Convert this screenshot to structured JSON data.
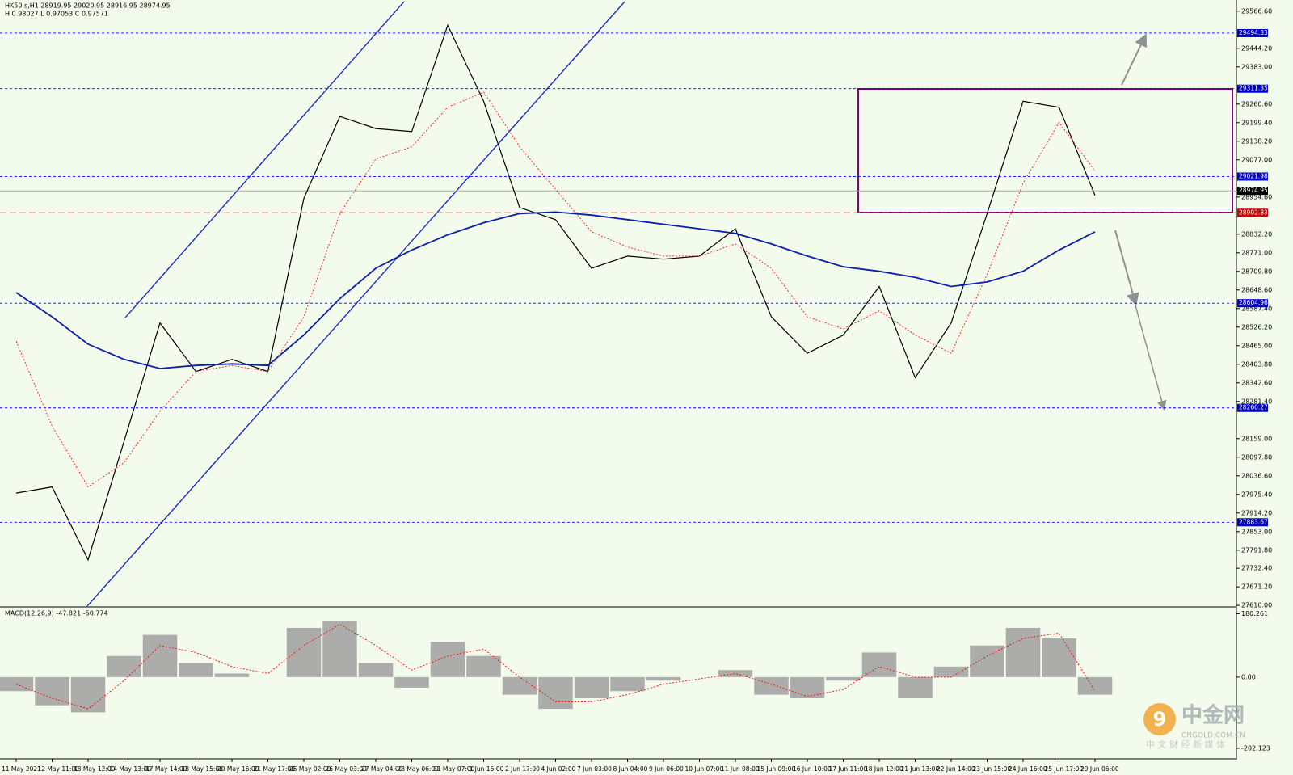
{
  "chart_data": [
    {
      "type": "line",
      "title": "HK50.s,H1  28919.95 29020.95 28916.95 28974.95",
      "subtitle": "H 0.98027 L 0.97053 C 0.97571",
      "categories": [
        "11 May 2021",
        "12 May 11:00",
        "13 May 12:00",
        "14 May 13:00",
        "17 May 14:00",
        "18 May 15:00",
        "20 May 16:00",
        "21 May 17:00",
        "25 May 02:00",
        "26 May 03:00",
        "27 May 04:00",
        "28 May 06:00",
        "31 May 07:00",
        "1 Jun 16:00",
        "2 Jun 17:00",
        "4 Jun 02:00",
        "7 Jun 03:00",
        "8 Jun 04:00",
        "9 Jun 06:00",
        "10 Jun 07:00",
        "11 Jun 08:00",
        "15 Jun 09:00",
        "16 Jun 10:00",
        "17 Jun 11:00",
        "18 Jun 12:00",
        "21 Jun 13:00",
        "22 Jun 14:00",
        "23 Jun 15:00",
        "24 Jun 16:00",
        "25 Jun 17:00",
        "29 Jun 06:00"
      ],
      "series": [
        {
          "color": "#000000",
          "width": 1.2,
          "dash": "none",
          "values": [
            27980,
            28000,
            27760,
            28150,
            28540,
            28380,
            28420,
            28380,
            28950,
            29220,
            29180,
            29170,
            29520,
            29270,
            28920,
            28880,
            28720,
            28760,
            28750,
            28760,
            28850,
            28560,
            28440,
            28500,
            28660,
            28360,
            28540,
            28900,
            29270,
            29250,
            28960
          ]
        },
        {
          "color": "#ff0000",
          "width": 0.8,
          "dash": "2,2",
          "values": [
            28480,
            28200,
            28000,
            28080,
            28250,
            28380,
            28400,
            28380,
            28560,
            28900,
            29080,
            29120,
            29250,
            29300,
            29120,
            28980,
            28840,
            28790,
            28760,
            28760,
            28800,
            28720,
            28560,
            28520,
            28580,
            28500,
            28440,
            28700,
            29000,
            29200,
            29040
          ]
        },
        {
          "color": "#0a1fa8",
          "width": 1.8,
          "dash": "none",
          "values": [
            28640,
            28560,
            28470,
            28420,
            28390,
            28400,
            28405,
            28400,
            28500,
            28620,
            28720,
            28780,
            28830,
            28870,
            28900,
            28905,
            28895,
            28880,
            28865,
            28850,
            28835,
            28800,
            28760,
            28725,
            28710,
            28690,
            28660,
            28675,
            28710,
            28780,
            28840
          ]
        }
      ],
      "levels": [
        {
          "value": 29494.33,
          "color": "#0000ff",
          "dash": "3,3",
          "box": "#0000cc"
        },
        {
          "value": 29311.35,
          "color": "#0000ff",
          "dash": "3,3",
          "box": "#0000cc"
        },
        {
          "value": 29021.98,
          "color": "#0000ff",
          "dash": "3,3",
          "box": "#0000cc"
        },
        {
          "value": 28974.95,
          "color": "#a0a0a0",
          "dash": "none",
          "box": "#000000"
        },
        {
          "value": 28902.83,
          "color": "#ff3030",
          "dash": "8,4",
          "box": "#d00000"
        },
        {
          "value": 28604.96,
          "color": "#0000ff",
          "dash": "3,3",
          "box": "#0000cc"
        },
        {
          "value": 28260.27,
          "color": "#0000ff",
          "dash": "3,3",
          "box": "#0000cc"
        },
        {
          "value": 27883.67,
          "color": "#0000ff",
          "dash": "3,3",
          "box": "#0000cc"
        }
      ],
      "ylim": [
        27605,
        29598
      ],
      "yticks": [
        {
          "value": 27610,
          "label": "27610.00"
        },
        {
          "value": 27671.2,
          "label": "27671.20"
        },
        {
          "value": 27732.4,
          "label": "27732.40"
        },
        {
          "value": 27791.8,
          "label": "27791.80"
        },
        {
          "value": 27853,
          "label": "27853.00"
        },
        {
          "value": 27914.2,
          "label": "27914.20"
        },
        {
          "value": 27975.4,
          "label": "27975.40"
        },
        {
          "value": 28036.6,
          "label": "28036.60"
        },
        {
          "value": 28097.8,
          "label": "28097.80"
        },
        {
          "value": 28159,
          "label": "28159.00"
        },
        {
          "value": 28281.4,
          "label": "28281.40"
        },
        {
          "value": 28342.6,
          "label": "28342.60"
        },
        {
          "value": 28403.8,
          "label": "28403.80"
        },
        {
          "value": 28465,
          "label": "28465.00"
        },
        {
          "value": 28526.2,
          "label": "28526.20"
        },
        {
          "value": 28587.4,
          "label": "28587.40"
        },
        {
          "value": 28648.6,
          "label": "28648.60"
        },
        {
          "value": 28709.8,
          "label": "28709.80"
        },
        {
          "value": 28771,
          "label": "28771.00"
        },
        {
          "value": 28832.2,
          "label": "28832.20"
        },
        {
          "value": 28954.6,
          "label": "28954.60"
        },
        {
          "value": 29077,
          "label": "29077.00"
        },
        {
          "value": 29138.2,
          "label": "29138.20"
        },
        {
          "value": 29199.4,
          "label": "29199.40"
        },
        {
          "value": 29260.6,
          "label": "29260.60"
        },
        {
          "value": 29383,
          "label": "29383.00"
        },
        {
          "value": 29444.2,
          "label": "29444.20"
        },
        {
          "value": 29566.6,
          "label": "29566.60"
        }
      ]
    },
    {
      "type": "bar",
      "title": "MACD(12,26,9) -47.821 -50.774",
      "color": "#9a9a9a",
      "values": [
        -40,
        -80,
        -100,
        60,
        120,
        40,
        10,
        0,
        140,
        160,
        40,
        -30,
        100,
        60,
        -50,
        -90,
        -60,
        -40,
        -10,
        0,
        20,
        -50,
        -60,
        -10,
        70,
        -60,
        30,
        90,
        140,
        110,
        -50
      ],
      "signal": {
        "color": "#ff0000",
        "values": [
          -20,
          -60,
          -90,
          -10,
          90,
          70,
          30,
          10,
          90,
          150,
          90,
          20,
          60,
          80,
          0,
          -70,
          -70,
          -50,
          -20,
          -5,
          10,
          -20,
          -55,
          -35,
          30,
          0,
          0,
          60,
          110,
          125,
          -40
        ]
      },
      "ylim": [
        -230,
        195
      ],
      "yticks": [
        180.261,
        {
          "value": 0,
          "label": "0.00"
        },
        -202.123
      ]
    }
  ],
  "watermark": {
    "name": "中金网",
    "site": "CNGOLD.COM.CN",
    "slogan": "中 文 财 经 新 媒 体"
  }
}
